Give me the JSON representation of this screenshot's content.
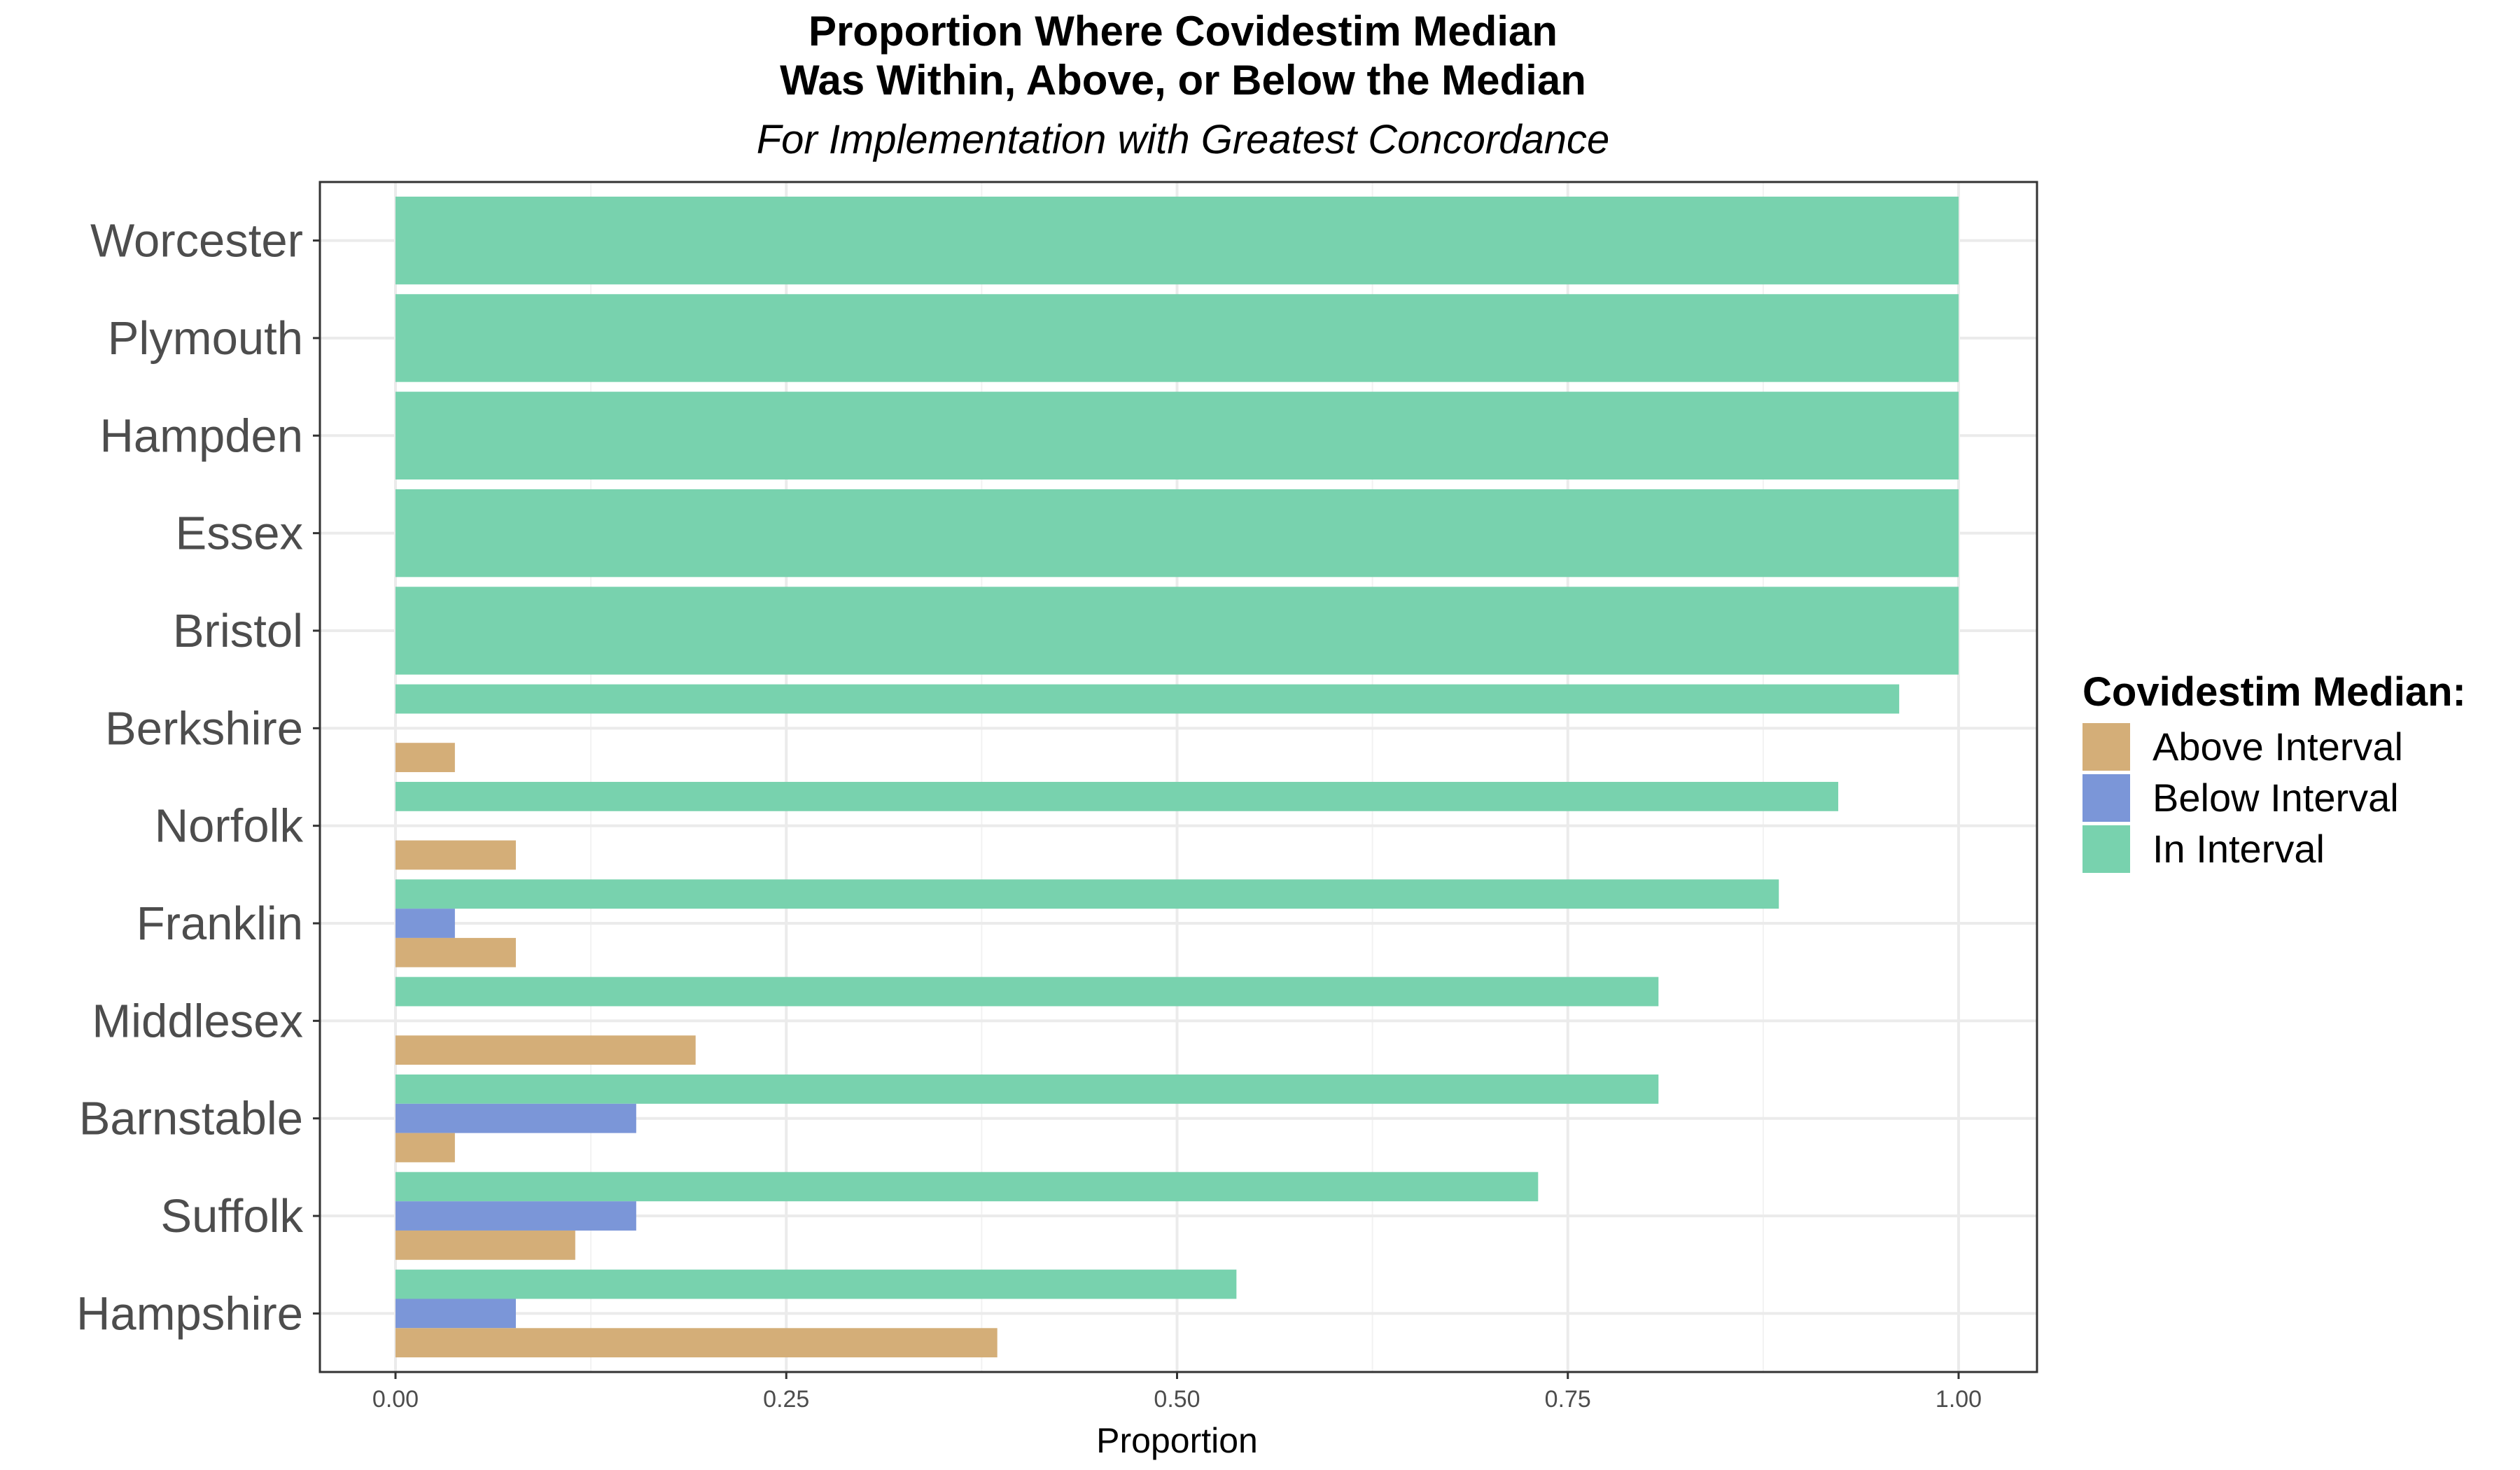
{
  "chart_data": {
    "type": "bar",
    "orientation": "horizontal",
    "title_line1": "Proportion Where Covidestim Median",
    "title_line2": "Was Within, Above, or Below the Median",
    "subtitle": "For Implementation with Greatest Concordance",
    "xlabel": "Proportion",
    "ylabel": "",
    "xlim": [
      -0.11,
      2.62
    ],
    "xticks": [
      "0.00",
      "0.25",
      "0.50",
      "0.75",
      "1.00"
    ],
    "categories": [
      "Worcester",
      "Plymouth",
      "Hampden",
      "Essex",
      "Bristol",
      "Berkshire",
      "Norfolk",
      "Franklin",
      "Middlesex",
      "Barnstable",
      "Suffolk",
      "Hampshire"
    ],
    "series": [
      {
        "name": "In Interval",
        "color": "#78d2ae",
        "values": [
          1.0,
          1.0,
          1.0,
          1.0,
          1.0,
          0.962,
          0.923,
          0.885,
          0.808,
          0.808,
          0.731,
          0.538
        ]
      },
      {
        "name": "Below Interval",
        "color": "#7b96d8",
        "values": [
          0,
          0,
          0,
          0,
          0,
          0,
          0,
          0.038,
          0,
          0.154,
          0.154,
          0.077
        ]
      },
      {
        "name": "Above Interval",
        "color": "#d4ae78",
        "values": [
          0,
          0,
          0,
          0,
          0,
          0.038,
          0.077,
          0.077,
          0.192,
          0.038,
          0.115,
          0.385
        ]
      }
    ],
    "legend": {
      "title": "Covidestim Median:",
      "position": "right",
      "items": [
        {
          "label": "Above Interval",
          "color": "#d4ae78"
        },
        {
          "label": "Below Interval",
          "color": "#7b96d8"
        },
        {
          "label": "In Interval",
          "color": "#78d2ae"
        }
      ]
    },
    "grid": true
  }
}
